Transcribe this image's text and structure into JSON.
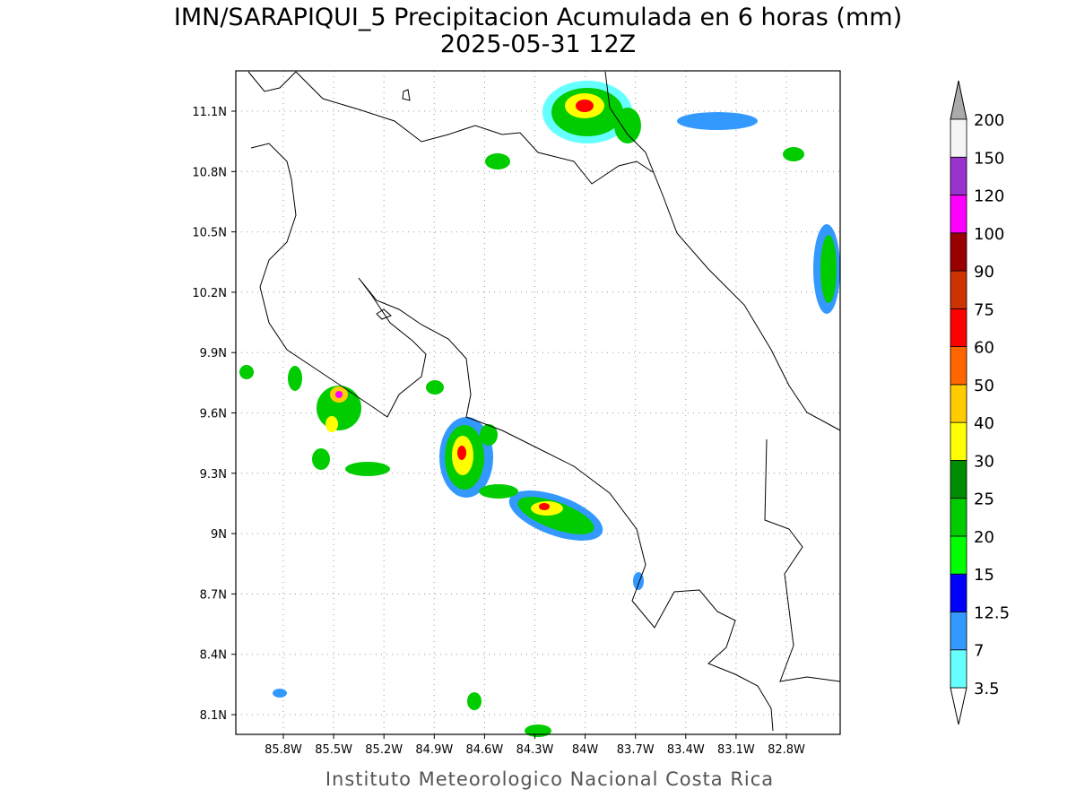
{
  "title": "IMN/SARAPIQUI_5 Precipitacion Acumulada en 6 horas (mm)",
  "subtitle": "2025-05-31 12Z",
  "lat_labels": [
    "11.1N",
    "10.8N",
    "10.5N",
    "10.2N",
    "9.9N",
    "9.6N",
    "9.3N",
    "9N",
    "8.7N",
    "8.4N",
    "8.1N"
  ],
  "lon_labels": [
    "85.8W",
    "85.5W",
    "85.2W",
    "84.9W",
    "84.6W",
    "84.3W",
    "84W",
    "83.7W",
    "83.4W",
    "83.1W",
    "82.8W"
  ],
  "colorbar": {
    "levels": [
      3.5,
      7,
      12.5,
      15,
      20,
      25,
      30,
      40,
      50,
      60,
      75,
      90,
      100,
      120,
      150,
      200
    ],
    "colors": [
      "#66ffff",
      "#3399ff",
      "#0000ff",
      "#00ff00",
      "#00cc00",
      "#008c00",
      "#ffff00",
      "#ffcc00",
      "#ff6600",
      "#ff0000",
      "#cc3300",
      "#990000",
      "#ff00ff",
      "#9933cc",
      "#f5f5f5"
    ],
    "under_color": "#ffffff",
    "over_color": "#aaaaaa"
  },
  "footer": "Instituto Meteorologico Nacional Costa Rica"
}
